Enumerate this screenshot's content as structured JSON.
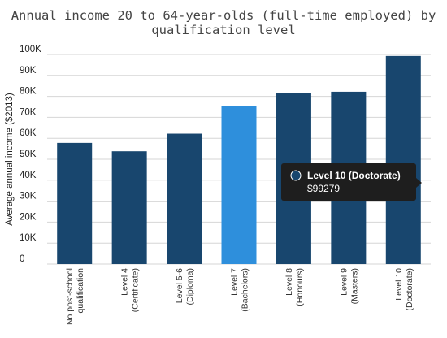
{
  "colors": {
    "bar": "#18466e",
    "highlight": "#2e8fdc",
    "grid": "#d6d6d6",
    "tooltip_bg": "#1e1e1e"
  },
  "chart_data": {
    "type": "bar",
    "title": "Annual income 20 to 64-year-olds (full-time employed) by qualification level",
    "title_lines": [
      "Annual income 20 to 64-year-olds (full-time employed) by",
      "qualification level"
    ],
    "ylabel": "Average annual income ($2013)",
    "xlabel": "",
    "ylim": [
      0,
      100000
    ],
    "yticks": [
      0,
      10000,
      20000,
      30000,
      40000,
      50000,
      60000,
      70000,
      80000,
      90000,
      100000
    ],
    "ytick_labels": [
      "0",
      "10K",
      "20K",
      "30K",
      "40K",
      "50K",
      "60K",
      "70K",
      "80K",
      "90K",
      "100K"
    ],
    "grid": true,
    "categories": [
      [
        "No post-school",
        "qualification"
      ],
      [
        "Level 4",
        "(Certificate)"
      ],
      [
        "Level 5-6",
        "(Diploma)"
      ],
      [
        "Level 7",
        "(Bachelors)"
      ],
      [
        "Level 8",
        "(Honours)"
      ],
      [
        "Level 9",
        "(Masters)"
      ],
      [
        "Level 10",
        "(Doctorate)"
      ]
    ],
    "values": [
      57800,
      53800,
      62200,
      75300,
      81700,
      82200,
      99279
    ],
    "highlighted_index": 3,
    "tooltip": {
      "series_label": "Level 10 (Doctorate)",
      "value_label": "$99279"
    }
  }
}
